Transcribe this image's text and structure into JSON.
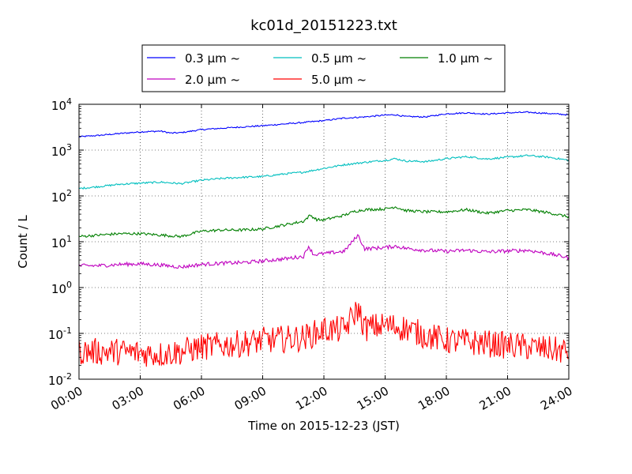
{
  "chart_data": {
    "type": "line",
    "title": "kc01d_20151223.txt",
    "xlabel": "Time on 2015-12-23 (JST)",
    "ylabel": "Count / L",
    "yscale": "log",
    "xlim": [
      "00:00",
      "24:00"
    ],
    "ylim": [
      0.01,
      10000
    ],
    "grid": true,
    "legend_position": "top-center",
    "x_ticks": [
      "00:00",
      "03:00",
      "06:00",
      "09:00",
      "12:00",
      "15:00",
      "18:00",
      "21:00",
      "24:00"
    ],
    "y_tick_bases": [
      "10",
      "10",
      "10",
      "10",
      "10",
      "10",
      "10"
    ],
    "y_tick_exponents": [
      "-2",
      "-1",
      "0",
      "1",
      "2",
      "3",
      "4"
    ],
    "series": [
      {
        "name": "0.3 μm ~",
        "color": "#0000ff",
        "noise": 0.015,
        "points": [
          [
            "00:00",
            1950
          ],
          [
            "01:00",
            2100
          ],
          [
            "02:00",
            2300
          ],
          [
            "03:00",
            2500
          ],
          [
            "04:00",
            2600
          ],
          [
            "04:30",
            2350
          ],
          [
            "05:00",
            2400
          ],
          [
            "06:00",
            2800
          ],
          [
            "07:00",
            3000
          ],
          [
            "08:00",
            3200
          ],
          [
            "09:00",
            3400
          ],
          [
            "10:00",
            3700
          ],
          [
            "11:00",
            4000
          ],
          [
            "12:00",
            4400
          ],
          [
            "13:00",
            5000
          ],
          [
            "14:00",
            5300
          ],
          [
            "15:00",
            5800
          ],
          [
            "15:30",
            5900
          ],
          [
            "16:00",
            5400
          ],
          [
            "17:00",
            5300
          ],
          [
            "18:00",
            6200
          ],
          [
            "19:00",
            6500
          ],
          [
            "20:00",
            6100
          ],
          [
            "21:00",
            6500
          ],
          [
            "22:00",
            6700
          ],
          [
            "23:00",
            6300
          ],
          [
            "24:00",
            5900
          ]
        ]
      },
      {
        "name": "0.5 μm ~",
        "color": "#00bfbf",
        "noise": 0.02,
        "points": [
          [
            "00:00",
            145
          ],
          [
            "01:00",
            160
          ],
          [
            "02:00",
            180
          ],
          [
            "03:00",
            190
          ],
          [
            "04:00",
            200
          ],
          [
            "05:00",
            185
          ],
          [
            "06:00",
            220
          ],
          [
            "07:00",
            240
          ],
          [
            "08:00",
            255
          ],
          [
            "09:00",
            265
          ],
          [
            "10:00",
            300
          ],
          [
            "11:00",
            330
          ],
          [
            "12:00",
            400
          ],
          [
            "13:00",
            480
          ],
          [
            "14:00",
            540
          ],
          [
            "15:00",
            600
          ],
          [
            "15:30",
            650
          ],
          [
            "16:00",
            580
          ],
          [
            "17:00",
            560
          ],
          [
            "18:00",
            650
          ],
          [
            "19:00",
            720
          ],
          [
            "20:00",
            640
          ],
          [
            "21:00",
            700
          ],
          [
            "22:00",
            760
          ],
          [
            "23:00",
            700
          ],
          [
            "24:00",
            600
          ]
        ]
      },
      {
        "name": "1.0 μm ~",
        "color": "#007f00",
        "noise": 0.03,
        "points": [
          [
            "00:00",
            13
          ],
          [
            "01:00",
            14
          ],
          [
            "02:00",
            15
          ],
          [
            "03:00",
            15
          ],
          [
            "04:00",
            14
          ],
          [
            "05:00",
            13
          ],
          [
            "06:00",
            17
          ],
          [
            "07:00",
            18
          ],
          [
            "08:00",
            18
          ],
          [
            "09:00",
            19
          ],
          [
            "10:00",
            23
          ],
          [
            "11:00",
            28
          ],
          [
            "11:20",
            38
          ],
          [
            "11:40",
            30
          ],
          [
            "12:00",
            30
          ],
          [
            "13:00",
            38
          ],
          [
            "13:30",
            46
          ],
          [
            "14:00",
            50
          ],
          [
            "15:00",
            52
          ],
          [
            "15:30",
            58
          ],
          [
            "16:00",
            48
          ],
          [
            "17:00",
            45
          ],
          [
            "18:00",
            45
          ],
          [
            "19:00",
            50
          ],
          [
            "20:00",
            42
          ],
          [
            "21:00",
            48
          ],
          [
            "22:00",
            50
          ],
          [
            "23:00",
            43
          ],
          [
            "24:00",
            35
          ]
        ]
      },
      {
        "name": "2.0 μm ~",
        "color": "#bf00bf",
        "noise": 0.04,
        "points": [
          [
            "00:00",
            3
          ],
          [
            "01:00",
            3
          ],
          [
            "02:00",
            3.2
          ],
          [
            "03:00",
            3.3
          ],
          [
            "04:00",
            3.1
          ],
          [
            "05:00",
            2.8
          ],
          [
            "06:00",
            3.2
          ],
          [
            "07:00",
            3.4
          ],
          [
            "08:00",
            3.5
          ],
          [
            "09:00",
            3.8
          ],
          [
            "10:00",
            4.2
          ],
          [
            "11:00",
            4.8
          ],
          [
            "11:15",
            8
          ],
          [
            "11:30",
            5.2
          ],
          [
            "12:00",
            5.5
          ],
          [
            "13:00",
            6.2
          ],
          [
            "13:40",
            14
          ],
          [
            "14:00",
            7
          ],
          [
            "15:00",
            7.5
          ],
          [
            "15:30",
            8
          ],
          [
            "16:00",
            7.2
          ],
          [
            "17:00",
            6.5
          ],
          [
            "18:00",
            6.2
          ],
          [
            "19:00",
            6.5
          ],
          [
            "20:00",
            6
          ],
          [
            "21:00",
            6.3
          ],
          [
            "22:00",
            6.5
          ],
          [
            "23:00",
            5.5
          ],
          [
            "24:00",
            4.5
          ]
        ]
      },
      {
        "name": "5.0 μm ~",
        "color": "#ff0000",
        "noise": 0.3,
        "points": [
          [
            "00:00",
            0.04
          ],
          [
            "02:00",
            0.04
          ],
          [
            "04:00",
            0.035
          ],
          [
            "05:00",
            0.04
          ],
          [
            "06:00",
            0.05
          ],
          [
            "08:00",
            0.06
          ],
          [
            "09:00",
            0.07
          ],
          [
            "11:00",
            0.08
          ],
          [
            "12:00",
            0.12
          ],
          [
            "13:00",
            0.12
          ],
          [
            "13:40",
            0.35
          ],
          [
            "14:00",
            0.13
          ],
          [
            "15:00",
            0.15
          ],
          [
            "16:00",
            0.13
          ],
          [
            "17:00",
            0.09
          ],
          [
            "18:00",
            0.07
          ],
          [
            "20:00",
            0.06
          ],
          [
            "22:00",
            0.05
          ],
          [
            "24:00",
            0.04
          ]
        ]
      }
    ]
  }
}
